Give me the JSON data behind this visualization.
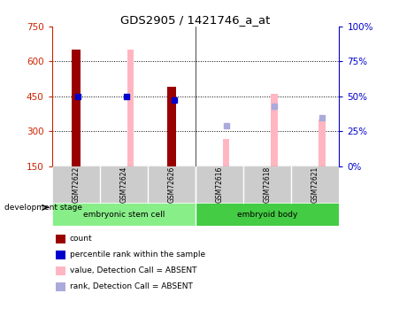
{
  "title": "GDS2905 / 1421746_a_at",
  "samples": [
    "GSM72622",
    "GSM72624",
    "GSM72626",
    "GSM72616",
    "GSM72618",
    "GSM72621"
  ],
  "ylim_left": [
    150,
    750
  ],
  "ylim_right": [
    0,
    100
  ],
  "yticks_left": [
    150,
    300,
    450,
    600,
    750
  ],
  "yticks_right": [
    0,
    25,
    50,
    75,
    100
  ],
  "dark_red_bars": {
    "GSM72622": 650,
    "GSM72626": 490
  },
  "pink_bars": {
    "GSM72624": 650,
    "GSM72616": 265,
    "GSM72618": 462,
    "GSM72621": 350
  },
  "blue_squares": {
    "GSM72622": 449,
    "GSM72624": 448,
    "GSM72626": 432
  },
  "light_blue_squares": {
    "GSM72616": 322,
    "GSM72618": 408,
    "GSM72621": 358
  },
  "bar_bottom": 150,
  "dark_red_color": "#990000",
  "pink_color": "#FFB6C1",
  "blue_color": "#0000CC",
  "light_blue_color": "#AAAADD",
  "left_axis_color": "#CC2200",
  "right_axis_color": "#0000CC",
  "bg_color": "#FFFFFF",
  "group1_label": "embryonic stem cell",
  "group2_label": "embryoid body",
  "group1_color": "#88EE88",
  "group2_color": "#44CC44",
  "gray_color": "#CCCCCC",
  "legend_items": [
    {
      "label": "count",
      "color": "#990000"
    },
    {
      "label": "percentile rank within the sample",
      "color": "#0000CC"
    },
    {
      "label": "value, Detection Call = ABSENT",
      "color": "#FFB6C1"
    },
    {
      "label": "rank, Detection Call = ABSENT",
      "color": "#AAAADD"
    }
  ]
}
